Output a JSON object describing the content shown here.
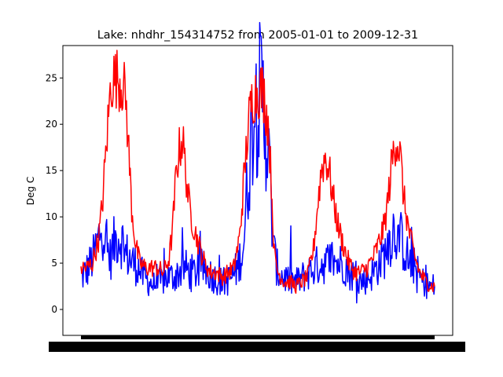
{
  "chart_data": {
    "type": "line",
    "title": "Lake: nhdhr_154314752 from 2005-01-01 to 2009-12-31",
    "xlabel": "",
    "ylabel": "Deg C",
    "x_range": [
      "2005-01-01",
      "2009-12-31"
    ],
    "ylim": [
      -2.8,
      28.5
    ],
    "yticks": [
      0,
      5,
      10,
      15,
      20,
      25
    ],
    "grid": false,
    "legend": "none",
    "x_tick_labels_overlapping": true,
    "series": [
      {
        "color": "#0000ff",
        "points": [
          [
            "2005-01-01",
            3.4
          ],
          [
            "2005-01-25",
            4.0
          ],
          [
            "2005-02-15",
            4.8
          ],
          [
            "2005-03-10",
            5.8
          ],
          [
            "2005-04-01",
            7.5
          ],
          [
            "2005-04-20",
            9.5
          ],
          [
            "2005-05-10",
            7.0
          ],
          [
            "2005-06-01",
            5.5
          ],
          [
            "2005-06-20",
            7.0
          ],
          [
            "2005-07-10",
            8.0
          ],
          [
            "2005-08-01",
            7.5
          ],
          [
            "2005-08-20",
            6.0
          ],
          [
            "2005-09-10",
            5.5
          ],
          [
            "2005-10-01",
            5.0
          ],
          [
            "2005-10-25",
            4.5
          ],
          [
            "2005-11-20",
            3.5
          ],
          [
            "2005-12-20",
            3.0
          ],
          [
            "2006-01-20",
            2.5
          ],
          [
            "2006-02-20",
            3.0
          ],
          [
            "2006-03-20",
            3.5
          ],
          [
            "2006-04-20",
            3.5
          ],
          [
            "2006-05-20",
            4.0
          ],
          [
            "2006-06-20",
            4.5
          ],
          [
            "2006-07-20",
            4.0
          ],
          [
            "2006-08-20",
            4.0
          ],
          [
            "2006-09-20",
            4.5
          ],
          [
            "2006-10-20",
            4.0
          ],
          [
            "2006-11-20",
            3.5
          ],
          [
            "2006-12-20",
            3.0
          ],
          [
            "2007-01-20",
            3.0
          ],
          [
            "2007-02-20",
            3.5
          ],
          [
            "2007-03-20",
            4.5
          ],
          [
            "2007-04-20",
            7.0
          ],
          [
            "2007-05-10",
            13.0
          ],
          [
            "2007-05-25",
            18.0
          ],
          [
            "2007-06-10",
            21.5
          ],
          [
            "2007-07-01",
            22.5
          ],
          [
            "2007-07-20",
            23.0
          ],
          [
            "2007-08-10",
            21.0
          ],
          [
            "2007-08-25",
            17.0
          ],
          [
            "2007-09-10",
            11.0
          ],
          [
            "2007-09-25",
            6.0
          ],
          [
            "2007-10-15",
            4.0
          ],
          [
            "2007-11-15",
            3.5
          ],
          [
            "2007-12-20",
            3.0
          ],
          [
            "2008-01-20",
            3.0
          ],
          [
            "2008-02-20",
            3.5
          ],
          [
            "2008-03-20",
            4.0
          ],
          [
            "2008-04-20",
            4.5
          ],
          [
            "2008-05-20",
            5.0
          ],
          [
            "2008-06-20",
            5.0
          ],
          [
            "2008-07-20",
            5.5
          ],
          [
            "2008-08-20",
            5.0
          ],
          [
            "2008-09-20",
            5.0
          ],
          [
            "2008-10-20",
            4.0
          ],
          [
            "2008-11-20",
            3.5
          ],
          [
            "2008-12-20",
            3.0
          ],
          [
            "2009-01-20",
            3.5
          ],
          [
            "2009-02-20",
            4.0
          ],
          [
            "2009-03-20",
            5.0
          ],
          [
            "2009-04-20",
            6.0
          ],
          [
            "2009-05-10",
            7.5
          ],
          [
            "2009-06-01",
            8.5
          ],
          [
            "2009-06-20",
            8.5
          ],
          [
            "2009-07-10",
            7.5
          ],
          [
            "2009-08-01",
            6.5
          ],
          [
            "2009-08-20",
            5.0
          ],
          [
            "2009-09-10",
            5.0
          ],
          [
            "2009-10-01",
            4.0
          ],
          [
            "2009-11-01",
            3.0
          ],
          [
            "2009-12-01",
            2.5
          ],
          [
            "2009-12-31",
            2.5
          ]
        ]
      },
      {
        "color": "#ff0000",
        "points": [
          [
            "2005-01-01",
            4.5
          ],
          [
            "2005-02-01",
            4.5
          ],
          [
            "2005-03-01",
            5.0
          ],
          [
            "2005-04-01",
            7.5
          ],
          [
            "2005-04-20",
            11.0
          ],
          [
            "2005-05-05",
            15.5
          ],
          [
            "2005-05-20",
            20.0
          ],
          [
            "2005-06-05",
            24.5
          ],
          [
            "2005-06-20",
            25.0
          ],
          [
            "2005-07-10",
            25.0
          ],
          [
            "2005-08-01",
            24.5
          ],
          [
            "2005-08-20",
            23.0
          ],
          [
            "2005-09-05",
            17.0
          ],
          [
            "2005-09-20",
            11.0
          ],
          [
            "2005-10-10",
            7.0
          ],
          [
            "2005-11-01",
            5.0
          ],
          [
            "2005-12-01",
            4.5
          ],
          [
            "2006-01-01",
            4.5
          ],
          [
            "2006-02-01",
            4.5
          ],
          [
            "2006-03-01",
            4.0
          ],
          [
            "2006-04-01",
            5.5
          ],
          [
            "2006-04-20",
            9.0
          ],
          [
            "2006-05-05",
            14.0
          ],
          [
            "2006-05-20",
            17.0
          ],
          [
            "2006-06-10",
            18.5
          ],
          [
            "2006-06-25",
            15.0
          ],
          [
            "2006-07-15",
            11.0
          ],
          [
            "2006-08-05",
            9.0
          ],
          [
            "2006-09-01",
            7.0
          ],
          [
            "2006-10-01",
            5.0
          ],
          [
            "2006-11-01",
            4.0
          ],
          [
            "2006-12-01",
            4.0
          ],
          [
            "2007-01-01",
            3.5
          ],
          [
            "2007-02-01",
            4.0
          ],
          [
            "2007-03-01",
            4.5
          ],
          [
            "2007-04-01",
            8.0
          ],
          [
            "2007-04-25",
            15.0
          ],
          [
            "2007-05-15",
            20.0
          ],
          [
            "2007-06-05",
            23.0
          ],
          [
            "2007-06-25",
            23.5
          ],
          [
            "2007-07-15",
            24.0
          ],
          [
            "2007-08-05",
            23.0
          ],
          [
            "2007-08-25",
            20.0
          ],
          [
            "2007-09-10",
            14.0
          ],
          [
            "2007-09-25",
            6.0
          ],
          [
            "2007-10-15",
            4.0
          ],
          [
            "2007-11-15",
            3.0
          ],
          [
            "2007-12-15",
            3.0
          ],
          [
            "2008-01-15",
            2.5
          ],
          [
            "2008-02-15",
            3.0
          ],
          [
            "2008-03-15",
            3.5
          ],
          [
            "2008-04-15",
            6.5
          ],
          [
            "2008-05-05",
            11.0
          ],
          [
            "2008-05-25",
            15.0
          ],
          [
            "2008-06-15",
            16.5
          ],
          [
            "2008-07-05",
            15.0
          ],
          [
            "2008-07-25",
            12.0
          ],
          [
            "2008-08-20",
            9.0
          ],
          [
            "2008-09-15",
            7.0
          ],
          [
            "2008-10-15",
            5.0
          ],
          [
            "2008-11-15",
            4.0
          ],
          [
            "2008-12-15",
            4.0
          ],
          [
            "2009-01-15",
            4.5
          ],
          [
            "2009-02-15",
            5.5
          ],
          [
            "2009-03-15",
            7.0
          ],
          [
            "2009-04-15",
            9.0
          ],
          [
            "2009-05-05",
            12.0
          ],
          [
            "2009-05-25",
            16.0
          ],
          [
            "2009-06-15",
            18.5
          ],
          [
            "2009-07-05",
            17.0
          ],
          [
            "2009-07-25",
            12.0
          ],
          [
            "2009-08-20",
            8.5
          ],
          [
            "2009-09-15",
            6.0
          ],
          [
            "2009-10-15",
            4.0
          ],
          [
            "2009-11-15",
            3.0
          ],
          [
            "2009-12-15",
            2.5
          ],
          [
            "2009-12-31",
            2.5
          ]
        ]
      }
    ]
  }
}
